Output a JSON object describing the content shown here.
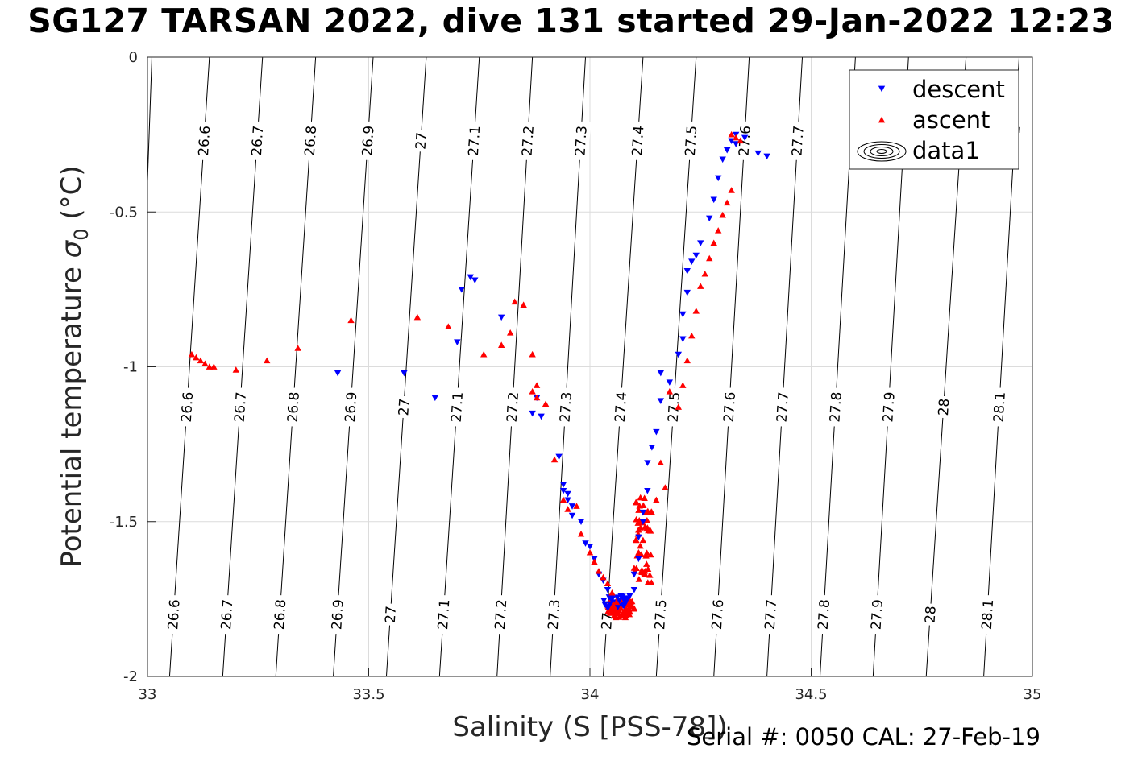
{
  "figure": {
    "title": "SG127 TARSAN 2022, dive 131 started 29-Jan-2022 12:23",
    "footer": "Serial #: 0050  CAL: 27-Feb-19"
  },
  "chart_data": {
    "type": "scatter",
    "xlabel": "Salinity (S [PSS-78])",
    "ylabel": "Potential temperature σ0 (°C)",
    "ylabel_parts": {
      "main": "Potential temperature ",
      "sigma": "σ",
      "sub": "0",
      "unit": " (°C)"
    },
    "xlim": [
      33,
      35
    ],
    "ylim": [
      -2,
      0
    ],
    "xticks": [
      33,
      33.5,
      34,
      34.5,
      35
    ],
    "xtick_labels": [
      "33",
      "33.5",
      "34",
      "34.5",
      "35"
    ],
    "yticks": [
      0,
      -0.5,
      -1,
      -1.5,
      -2
    ],
    "ytick_labels": [
      "0",
      "-0.5",
      "-1",
      "-1.5",
      "-2"
    ],
    "grid": true,
    "legend": {
      "location": "top-right",
      "entries": [
        {
          "label": "descent",
          "marker": "down-triangle",
          "color": "#0000ff"
        },
        {
          "label": "ascent",
          "marker": "up-triangle",
          "color": "#ff0000"
        },
        {
          "label": "data1",
          "marker": "contour",
          "color": "#000000"
        }
      ]
    },
    "contours": {
      "levels": [
        26.6,
        26.7,
        26.8,
        26.9,
        27,
        27.1,
        27.2,
        27.3,
        27.4,
        27.5,
        27.6,
        27.7,
        27.8,
        27.9,
        28,
        28.1
      ],
      "level_labels": [
        "26.6",
        "26.7",
        "26.8",
        "26.9",
        "27",
        "27.1",
        "27.2",
        "27.3",
        "27.4",
        "27.5",
        "27.6",
        "27.7",
        "27.8",
        "27.9",
        "28",
        "28.1"
      ],
      "lines": [
        {
          "s_top": 33.14,
          "s_bottom": 33.05
        },
        {
          "s_top": 33.26,
          "s_bottom": 33.17
        },
        {
          "s_top": 33.38,
          "s_bottom": 33.29
        },
        {
          "s_top": 33.51,
          "s_bottom": 33.42
        },
        {
          "s_top": 33.63,
          "s_bottom": 33.54
        },
        {
          "s_top": 33.75,
          "s_bottom": 33.66
        },
        {
          "s_top": 33.87,
          "s_bottom": 33.79
        },
        {
          "s_top": 33.99,
          "s_bottom": 33.91
        },
        {
          "s_top": 34.12,
          "s_bottom": 34.03
        },
        {
          "s_top": 34.24,
          "s_bottom": 34.15
        },
        {
          "s_top": 34.36,
          "s_bottom": 34.28
        },
        {
          "s_top": 34.48,
          "s_bottom": 34.4
        },
        {
          "s_top": 34.6,
          "s_bottom": 34.52
        },
        {
          "s_top": 34.72,
          "s_bottom": 34.64
        },
        {
          "s_top": 34.85,
          "s_bottom": 34.76
        },
        {
          "s_top": 34.97,
          "s_bottom": 34.89
        },
        {
          "s_top": 33.01,
          "s_bottom": 32.96
        }
      ],
      "label_rows_temp": [
        -0.27,
        -1.13,
        -1.8
      ],
      "label_rows_levels": [
        [
          "26.6",
          "26.7",
          "26.8",
          "26.9",
          "27",
          "27.1",
          "27.2",
          "27.3",
          "27.4",
          "27.5",
          "27.6",
          "27.7",
          "28.1"
        ],
        [
          "26.6",
          "26.7",
          "26.8",
          "26.9",
          "27",
          "27.1",
          "27.2",
          "27.3",
          "27.4",
          "27.5",
          "27.6",
          "27.7",
          "27.8",
          "27.9",
          "28",
          "28.1"
        ],
        [
          "26.6",
          "26.7",
          "26.8",
          "26.9",
          "27",
          "27.1",
          "27.2",
          "27.3",
          "27.4",
          "27.5",
          "27.6",
          "27.7",
          "27.8",
          "27.9",
          "28",
          "28.1"
        ]
      ]
    },
    "series": [
      {
        "name": "descent",
        "color": "#0000ff",
        "marker": "down-triangle",
        "points": [
          [
            33.43,
            -1.02
          ],
          [
            33.58,
            -1.02
          ],
          [
            33.65,
            -1.1
          ],
          [
            33.7,
            -0.92
          ],
          [
            33.71,
            -0.75
          ],
          [
            33.73,
            -0.71
          ],
          [
            33.74,
            -0.72
          ],
          [
            33.8,
            -0.84
          ],
          [
            33.87,
            -1.15
          ],
          [
            33.88,
            -1.1
          ],
          [
            33.89,
            -1.16
          ],
          [
            33.93,
            -1.29
          ],
          [
            33.94,
            -1.38
          ],
          [
            33.94,
            -1.4
          ],
          [
            33.95,
            -1.41
          ],
          [
            33.95,
            -1.43
          ],
          [
            33.96,
            -1.45
          ],
          [
            33.96,
            -1.48
          ],
          [
            33.98,
            -1.5
          ],
          [
            33.99,
            -1.57
          ],
          [
            34.0,
            -1.58
          ],
          [
            34.01,
            -1.62
          ],
          [
            34.02,
            -1.67
          ],
          [
            34.03,
            -1.69
          ],
          [
            34.04,
            -1.72
          ],
          [
            34.05,
            -1.75
          ],
          [
            34.06,
            -1.76
          ],
          [
            34.07,
            -1.74
          ],
          [
            34.08,
            -1.76
          ],
          [
            34.09,
            -1.74
          ],
          [
            34.1,
            -1.72
          ],
          [
            34.1,
            -1.67
          ],
          [
            34.11,
            -1.62
          ],
          [
            34.11,
            -1.55
          ],
          [
            34.12,
            -1.5
          ],
          [
            34.12,
            -1.47
          ],
          [
            34.13,
            -1.4
          ],
          [
            34.13,
            -1.31
          ],
          [
            34.14,
            -1.26
          ],
          [
            34.15,
            -1.21
          ],
          [
            34.16,
            -1.11
          ],
          [
            34.16,
            -1.02
          ],
          [
            34.18,
            -1.05
          ],
          [
            34.2,
            -0.96
          ],
          [
            34.21,
            -0.91
          ],
          [
            34.21,
            -0.83
          ],
          [
            34.22,
            -0.76
          ],
          [
            34.22,
            -0.69
          ],
          [
            34.23,
            -0.66
          ],
          [
            34.24,
            -0.64
          ],
          [
            34.25,
            -0.6
          ],
          [
            34.27,
            -0.52
          ],
          [
            34.28,
            -0.46
          ],
          [
            34.29,
            -0.39
          ],
          [
            34.3,
            -0.33
          ],
          [
            34.31,
            -0.3
          ],
          [
            34.32,
            -0.27
          ],
          [
            34.33,
            -0.25
          ],
          [
            34.35,
            -0.26
          ],
          [
            34.38,
            -0.31
          ],
          [
            34.4,
            -0.32
          ],
          [
            34.33,
            -0.28
          ]
        ]
      },
      {
        "name": "ascent",
        "color": "#ff0000",
        "marker": "up-triangle",
        "points": [
          [
            33.1,
            -0.96
          ],
          [
            33.11,
            -0.97
          ],
          [
            33.12,
            -0.98
          ],
          [
            33.13,
            -0.99
          ],
          [
            33.14,
            -1.0
          ],
          [
            33.15,
            -1.0
          ],
          [
            33.2,
            -1.01
          ],
          [
            33.27,
            -0.98
          ],
          [
            33.34,
            -0.94
          ],
          [
            33.46,
            -0.85
          ],
          [
            33.61,
            -0.84
          ],
          [
            33.68,
            -0.87
          ],
          [
            33.76,
            -0.96
          ],
          [
            33.8,
            -0.93
          ],
          [
            33.82,
            -0.89
          ],
          [
            33.83,
            -0.79
          ],
          [
            33.85,
            -0.8
          ],
          [
            33.87,
            -0.96
          ],
          [
            33.87,
            -1.08
          ],
          [
            33.88,
            -1.06
          ],
          [
            33.88,
            -1.1
          ],
          [
            33.9,
            -1.12
          ],
          [
            33.92,
            -1.3
          ],
          [
            33.94,
            -1.43
          ],
          [
            33.95,
            -1.46
          ],
          [
            33.97,
            -1.45
          ],
          [
            33.98,
            -1.54
          ],
          [
            34.0,
            -1.6
          ],
          [
            34.01,
            -1.63
          ],
          [
            34.02,
            -1.66
          ],
          [
            34.03,
            -1.68
          ],
          [
            34.04,
            -1.7
          ],
          [
            34.05,
            -1.73
          ],
          [
            34.06,
            -1.76
          ],
          [
            34.07,
            -1.78
          ],
          [
            34.08,
            -1.8
          ],
          [
            34.09,
            -1.79
          ],
          [
            34.1,
            -1.78
          ],
          [
            34.1,
            -1.65
          ],
          [
            34.11,
            -1.6
          ],
          [
            34.12,
            -1.56
          ],
          [
            34.13,
            -1.52
          ],
          [
            34.14,
            -1.47
          ],
          [
            34.15,
            -1.43
          ],
          [
            34.17,
            -1.39
          ],
          [
            34.16,
            -1.31
          ],
          [
            34.18,
            -1.08
          ],
          [
            34.2,
            -1.13
          ],
          [
            34.21,
            -1.06
          ],
          [
            34.22,
            -0.98
          ],
          [
            34.23,
            -0.9
          ],
          [
            34.24,
            -0.82
          ],
          [
            34.25,
            -0.74
          ],
          [
            34.26,
            -0.7
          ],
          [
            34.27,
            -0.65
          ],
          [
            34.28,
            -0.6
          ],
          [
            34.29,
            -0.56
          ],
          [
            34.3,
            -0.51
          ],
          [
            34.31,
            -0.47
          ],
          [
            34.32,
            -0.43
          ],
          [
            34.32,
            -0.25
          ],
          [
            34.33,
            -0.26
          ],
          [
            34.34,
            -0.27
          ]
        ]
      }
    ],
    "clusters": [
      {
        "series": "ascent",
        "s_center": 34.07,
        "t_center": -1.78,
        "s_spread": 0.03,
        "t_spread": 0.03,
        "count": 70
      },
      {
        "series": "ascent",
        "s_center": 34.12,
        "t_center": -1.5,
        "s_spread": 0.02,
        "t_spread": 0.08,
        "count": 25
      },
      {
        "series": "ascent",
        "s_center": 34.12,
        "t_center": -1.65,
        "s_spread": 0.02,
        "t_spread": 0.05,
        "count": 20
      },
      {
        "series": "descent",
        "s_center": 34.06,
        "t_center": -1.76,
        "s_spread": 0.03,
        "t_spread": 0.02,
        "count": 20
      }
    ]
  }
}
